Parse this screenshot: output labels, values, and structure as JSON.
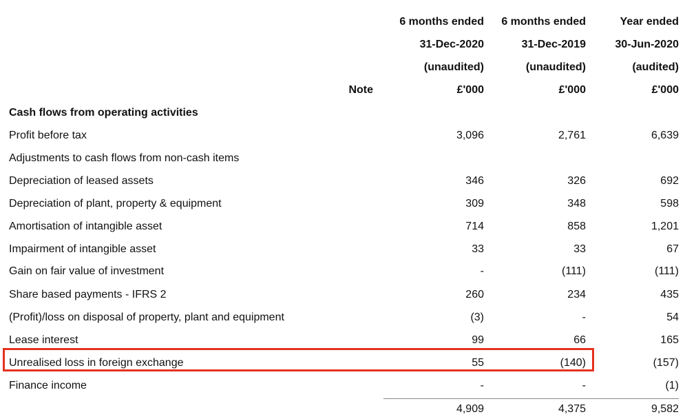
{
  "header": {
    "note_label": "Note",
    "columns": [
      {
        "line1": "6 months ended",
        "line2": "31-Dec-2020",
        "line3": "(unaudited)",
        "unit": "£'000"
      },
      {
        "line1": "6 months ended",
        "line2": "31-Dec-2019",
        "line3": "(unaudited)",
        "unit": "£'000"
      },
      {
        "line1": "Year ended",
        "line2": "30-Jun-2020",
        "line3": "(audited)",
        "unit": "£'000"
      }
    ]
  },
  "section_title": "Cash flows from operating activities",
  "rows": [
    {
      "label": "Profit before tax",
      "v": [
        "3,096",
        "2,761",
        "6,639"
      ]
    },
    {
      "label": "Adjustments to cash flows from non-cash items",
      "v": [
        "",
        "",
        ""
      ]
    },
    {
      "label": "Depreciation of leased assets",
      "v": [
        "346",
        "326",
        "692"
      ]
    },
    {
      "label": "Depreciation of plant, property & equipment",
      "v": [
        "309",
        "348",
        "598"
      ]
    },
    {
      "label": "Amortisation of intangible asset",
      "v": [
        "714",
        "858",
        "1,201"
      ]
    },
    {
      "label": "Impairment of intangible asset",
      "v": [
        "33",
        "33",
        "67"
      ]
    },
    {
      "label": "Gain on fair value of investment",
      "v": [
        "-",
        "(111)",
        "(111)"
      ]
    },
    {
      "label": "Share based payments - IFRS 2",
      "v": [
        "260",
        "234",
        "435"
      ]
    },
    {
      "label": "(Profit)/loss on disposal of property, plant and equipment",
      "v": [
        "(3)",
        "-",
        "54"
      ]
    },
    {
      "label": "Lease interest",
      "v": [
        "99",
        "66",
        "165"
      ]
    },
    {
      "label": "Unrealised loss in foreign exchange",
      "v": [
        "55",
        "(140)",
        "(157)"
      ]
    },
    {
      "label": "Finance income",
      "v": [
        "-",
        "-",
        "(1)"
      ]
    }
  ],
  "totals": [
    "4,909",
    "4,375",
    "9,582"
  ],
  "highlight_color": "#e5321e"
}
